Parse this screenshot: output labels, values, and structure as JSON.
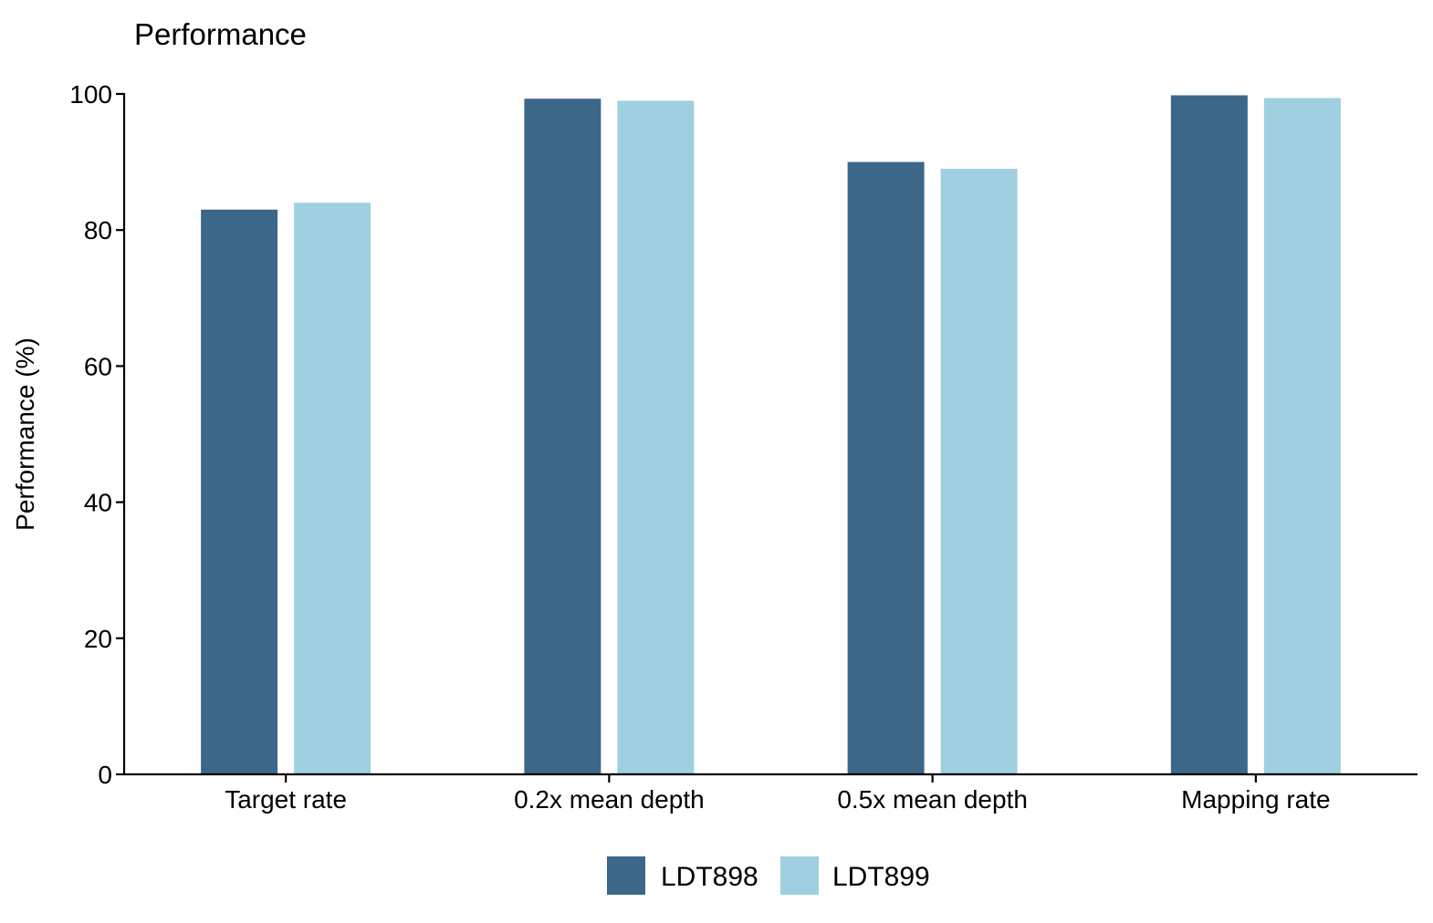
{
  "chart_data": {
    "type": "bar",
    "title": "Performance",
    "xlabel": "",
    "ylabel": "Performance (%)",
    "ylim": [
      0,
      100
    ],
    "yticks": [
      0,
      20,
      40,
      60,
      80,
      100
    ],
    "categories": [
      "Target rate",
      "0.2x mean depth",
      "0.5x mean depth",
      "Mapping rate"
    ],
    "series": [
      {
        "name": "LDT898",
        "color": "#3d6789",
        "values": [
          83.0,
          99.3,
          90.0,
          99.8
        ]
      },
      {
        "name": "LDT899",
        "color": "#9fcfe0",
        "values": [
          84.0,
          99.0,
          89.0,
          99.4
        ]
      }
    ],
    "grid": false,
    "legend_position": "bottom"
  }
}
